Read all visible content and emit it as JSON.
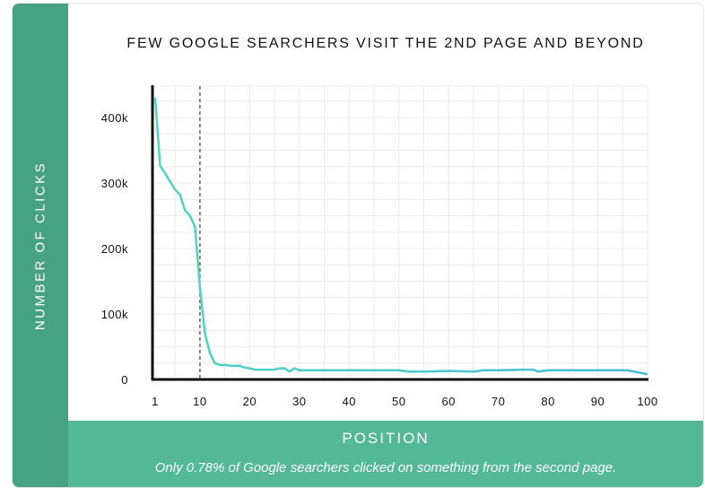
{
  "chart_data": {
    "type": "line",
    "title": "FEW GOOGLE SEARCHERS VISIT THE 2ND PAGE AND BEYOND",
    "xlabel": "POSITION",
    "ylabel": "NUMBER OF CLICKS",
    "caption": "Only 0.78% of Google searchers clicked on something from the second page.",
    "xlim": [
      1,
      100
    ],
    "ylim": [
      0,
      450000
    ],
    "x_ticks": [
      "1",
      "10",
      "20",
      "30",
      "40",
      "50",
      "60",
      "70",
      "80",
      "90",
      "100"
    ],
    "y_ticks": [
      "0",
      "100k",
      "200k",
      "300k",
      "400k"
    ],
    "grid": true,
    "annotations": [
      {
        "type": "vertical-dashed-line",
        "x": 10,
        "meaning": "end of first page"
      }
    ],
    "series": [
      {
        "name": "Clicks",
        "color": "#4fd6bc",
        "x": [
          1,
          2,
          3,
          4,
          5,
          6,
          7,
          8,
          9,
          10,
          11,
          12,
          13,
          14,
          15,
          16,
          17,
          18,
          19,
          20,
          21,
          22,
          23,
          24,
          25,
          26,
          27,
          28,
          29,
          30,
          35,
          40,
          45,
          50,
          52,
          55,
          60,
          65,
          67,
          70,
          75,
          77,
          78,
          80,
          85,
          90,
          95,
          96,
          98,
          100
        ],
        "values": [
          430000,
          326000,
          315000,
          302000,
          290000,
          282000,
          258000,
          250000,
          233000,
          140000,
          70000,
          40000,
          25000,
          22000,
          22000,
          21000,
          21000,
          21000,
          18000,
          17000,
          15000,
          15000,
          15000,
          15000,
          15000,
          17000,
          17000,
          12000,
          17000,
          14000,
          14000,
          14000,
          14000,
          14000,
          12000,
          12000,
          13000,
          12000,
          14000,
          14000,
          15000,
          15000,
          12000,
          14000,
          14000,
          14000,
          14000,
          14000,
          11000,
          8000
        ]
      }
    ]
  },
  "colors": {
    "side_strip": "#47a284",
    "bottom_band": "#52b896",
    "line_start": "#4fd6bc",
    "line_end": "#4ab8dc"
  }
}
